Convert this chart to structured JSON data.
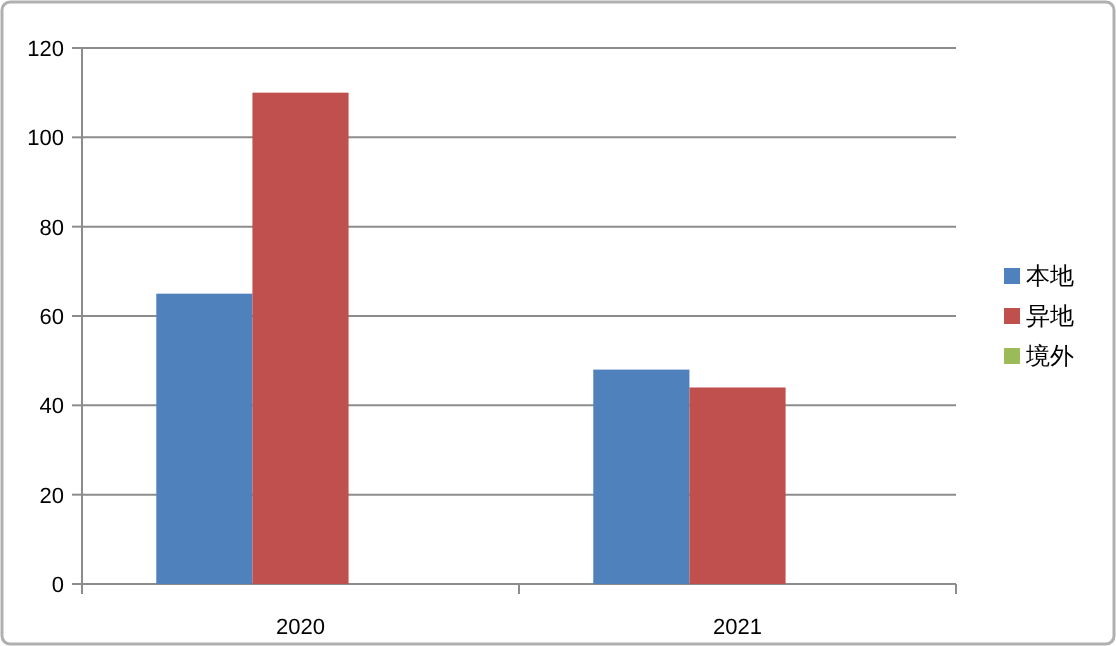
{
  "chart_data": {
    "type": "bar",
    "categories": [
      "2020",
      "2021"
    ],
    "series": [
      {
        "name": "本地",
        "color": "#4f81bd",
        "values": [
          65,
          48
        ]
      },
      {
        "name": "异地",
        "color": "#c0504d",
        "values": [
          110,
          44
        ]
      },
      {
        "name": "境外",
        "color": "#9bbb59",
        "values": [
          null,
          null
        ]
      }
    ],
    "ylim": [
      0,
      120
    ],
    "yticks": [
      0,
      20,
      40,
      60,
      80,
      100,
      120
    ],
    "grid": "y",
    "legend": "right"
  }
}
